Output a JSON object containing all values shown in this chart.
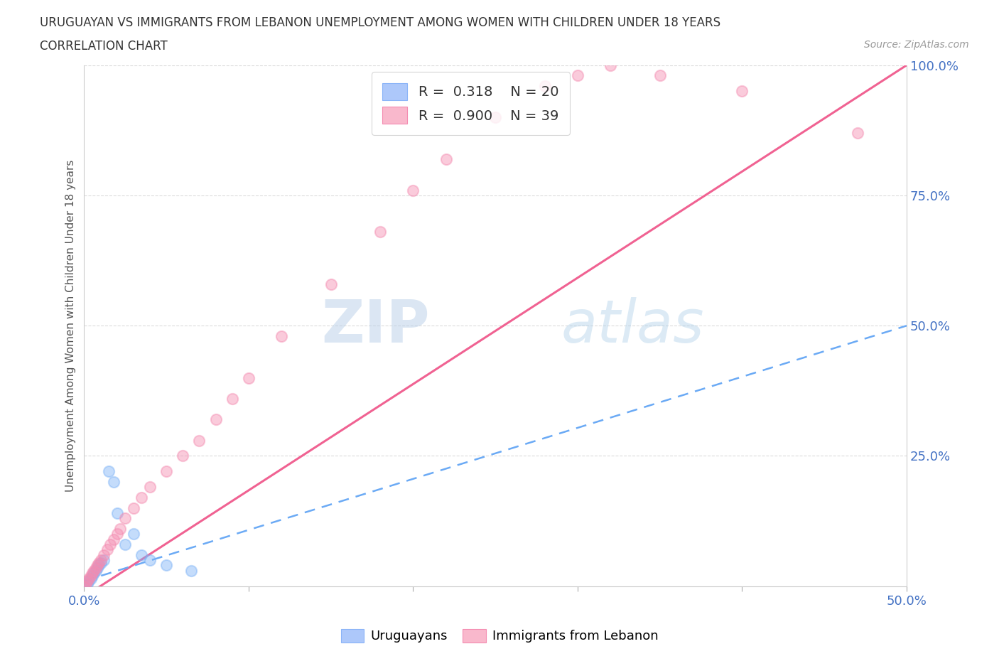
{
  "title_line1": "URUGUAYAN VS IMMIGRANTS FROM LEBANON UNEMPLOYMENT AMONG WOMEN WITH CHILDREN UNDER 18 YEARS",
  "title_line2": "CORRELATION CHART",
  "source_text": "Source: ZipAtlas.com",
  "ylabel": "Unemployment Among Women with Children Under 18 years",
  "xlim": [
    0,
    0.5
  ],
  "ylim": [
    0,
    1.0
  ],
  "watermark_zip": "ZIP",
  "watermark_atlas": "atlas",
  "legend_r1": "R =  0.318    N = 20",
  "legend_r2": "R =  0.900    N = 39",
  "uruguayan_scatter_color": "#7EB3F7",
  "lebanon_scatter_color": "#F48CB1",
  "uruguayan_line_color": "#6BAAF5",
  "lebanon_line_color": "#F06292",
  "background_color": "#ffffff",
  "grid_color": "#cccccc",
  "uru_x": [
    0.0,
    0.002,
    0.003,
    0.004,
    0.005,
    0.006,
    0.007,
    0.008,
    0.009,
    0.01,
    0.012,
    0.015,
    0.018,
    0.02,
    0.025,
    0.03,
    0.035,
    0.04,
    0.05,
    0.065
  ],
  "uru_y": [
    0.0,
    0.005,
    0.01,
    0.015,
    0.02,
    0.025,
    0.03,
    0.035,
    0.04,
    0.045,
    0.05,
    0.22,
    0.2,
    0.14,
    0.08,
    0.1,
    0.06,
    0.05,
    0.04,
    0.03
  ],
  "leb_x": [
    0.0,
    0.001,
    0.002,
    0.003,
    0.004,
    0.005,
    0.006,
    0.007,
    0.008,
    0.009,
    0.01,
    0.012,
    0.014,
    0.016,
    0.018,
    0.02,
    0.022,
    0.025,
    0.03,
    0.035,
    0.04,
    0.05,
    0.06,
    0.07,
    0.08,
    0.09,
    0.1,
    0.12,
    0.15,
    0.18,
    0.2,
    0.22,
    0.25,
    0.28,
    0.3,
    0.32,
    0.35,
    0.4,
    0.47
  ],
  "leb_y": [
    0.0,
    0.005,
    0.01,
    0.015,
    0.02,
    0.025,
    0.03,
    0.035,
    0.04,
    0.045,
    0.05,
    0.06,
    0.07,
    0.08,
    0.09,
    0.1,
    0.11,
    0.13,
    0.15,
    0.17,
    0.19,
    0.22,
    0.25,
    0.28,
    0.32,
    0.36,
    0.4,
    0.48,
    0.58,
    0.68,
    0.76,
    0.82,
    0.9,
    0.96,
    0.98,
    1.0,
    0.98,
    0.95,
    0.87
  ],
  "leb_line_x0": 0.0,
  "leb_line_y0": -0.02,
  "leb_line_x1": 0.5,
  "leb_line_y1": 1.0,
  "uru_line_x0": 0.0,
  "uru_line_y0": 0.01,
  "uru_line_x1": 0.5,
  "uru_line_y1": 0.5
}
